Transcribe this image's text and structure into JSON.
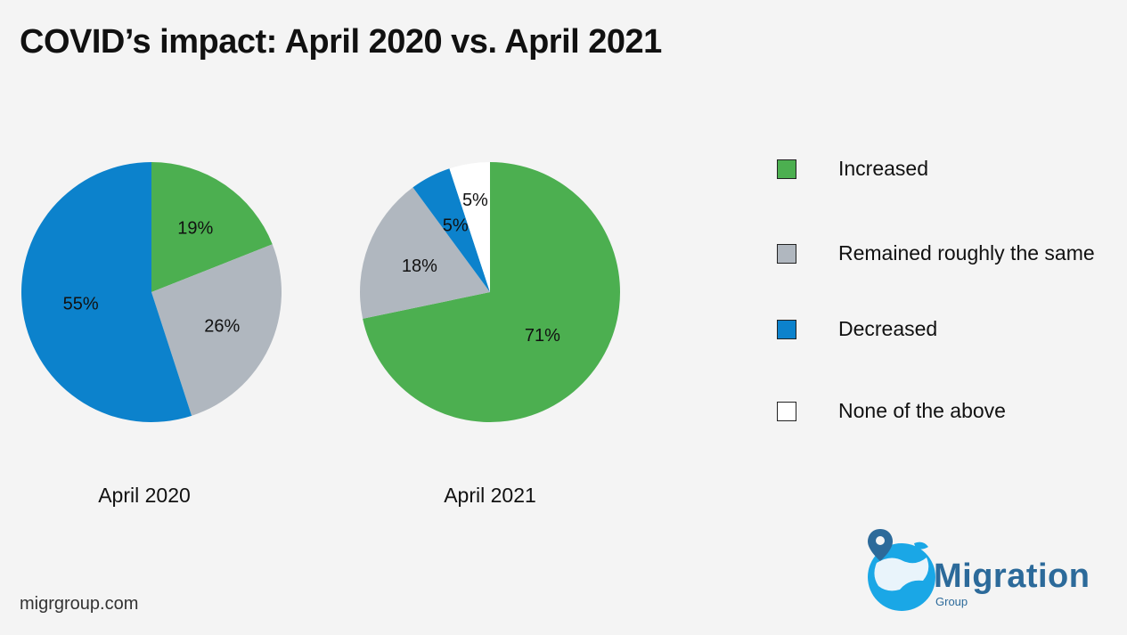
{
  "title": "COVID’s impact: April 2020 vs. April 2021",
  "chart_data": [
    {
      "type": "pie",
      "caption": "April 2020",
      "categories": [
        "Increased",
        "Remained roughly the same",
        "Decreased"
      ],
      "values": [
        19,
        26,
        55
      ],
      "labels": [
        "19%",
        "26%",
        "55%"
      ],
      "colors": [
        "#4caf50",
        "#b0b7bf",
        "#0c82cc"
      ]
    },
    {
      "type": "pie",
      "caption": "April 2021",
      "categories": [
        "Increased",
        "Remained roughly the same",
        "Decreased",
        "None of the above"
      ],
      "values": [
        71,
        18,
        5,
        5
      ],
      "labels": [
        "71%",
        "18%",
        "5%",
        "5%"
      ],
      "colors": [
        "#4caf50",
        "#b0b7bf",
        "#0c82cc",
        "#ffffff"
      ]
    }
  ],
  "legend": [
    {
      "label": "Increased",
      "color": "#4caf50"
    },
    {
      "label": "Remained roughly the same",
      "color": "#b0b7bf"
    },
    {
      "label": "Decreased",
      "color": "#0c82cc"
    },
    {
      "label": "None of the above",
      "color": "#ffffff"
    }
  ],
  "footer": {
    "site": "migrgroup.com"
  },
  "logo": {
    "name": "Migration",
    "sub": "Group"
  }
}
